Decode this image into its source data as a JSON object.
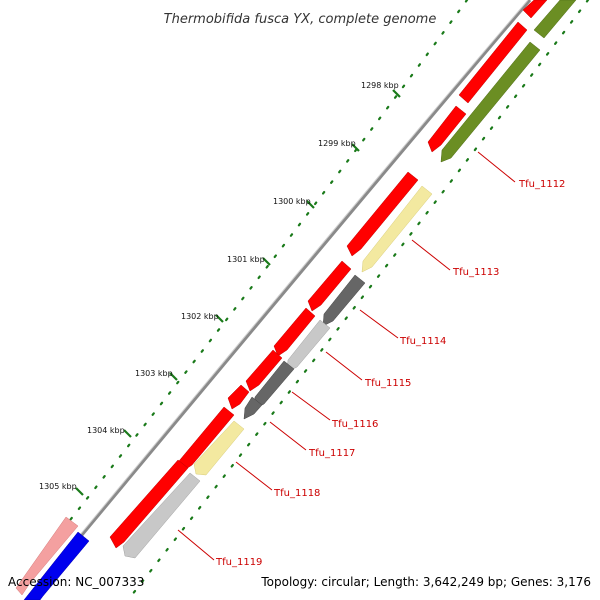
{
  "title": "Thermobifida fusca YX, complete genome",
  "accession": "Accession: NC_007333",
  "summary": "Topology: circular; Length: 3,642,249 bp; Genes: 3,176",
  "colors": {
    "backbone": "#808080",
    "cds_forward": "#ff0000",
    "feature_pink": "#f4a0a0",
    "feature_blue": "#0000ee",
    "feature_olive": "#6b8e23",
    "feature_yellow": "#f3e9a0",
    "feature_gray": "#c0c0c0",
    "feature_darkgray": "#606060",
    "tick": "#1a7a1a",
    "label": "#cc0000"
  },
  "ticks": [
    {
      "label": "1298 kbp"
    },
    {
      "label": "1299 kbp"
    },
    {
      "label": "1300 kbp"
    },
    {
      "label": "1301 kbp"
    },
    {
      "label": "1302 kbp"
    },
    {
      "label": "1303 kbp"
    },
    {
      "label": "1304 kbp"
    },
    {
      "label": "1305 kbp"
    }
  ],
  "gene_labels": [
    {
      "name": "Tfu_1112"
    },
    {
      "name": "Tfu_1113"
    },
    {
      "name": "Tfu_1114"
    },
    {
      "name": "Tfu_1115"
    },
    {
      "name": "Tfu_1116"
    },
    {
      "name": "Tfu_1117"
    },
    {
      "name": "Tfu_1118"
    },
    {
      "name": "Tfu_1119"
    }
  ]
}
